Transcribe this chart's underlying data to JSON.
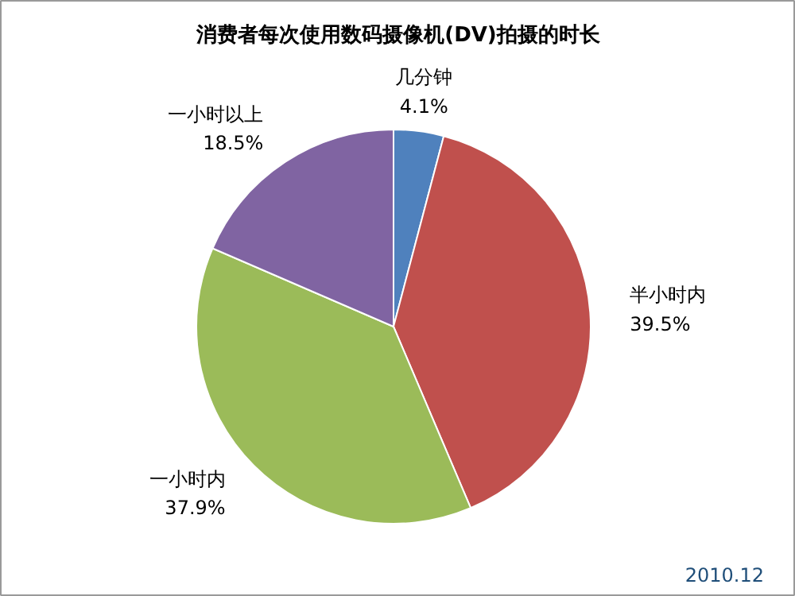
{
  "chart_data": {
    "type": "pie",
    "title": "消费者每次使用数码摄像机(DV)拍摄的时长",
    "categories": [
      "几分钟",
      "半小时内",
      "一小时内",
      "一小时以上"
    ],
    "values": [
      4.1,
      39.5,
      37.9,
      18.5
    ],
    "colors": [
      "#4f81bd",
      "#c0504d",
      "#9bbb59",
      "#8064a2"
    ],
    "value_labels": [
      "4.1%",
      "39.5%",
      "37.9%",
      "18.5%"
    ],
    "annotations": [
      "2010.12"
    ]
  }
}
